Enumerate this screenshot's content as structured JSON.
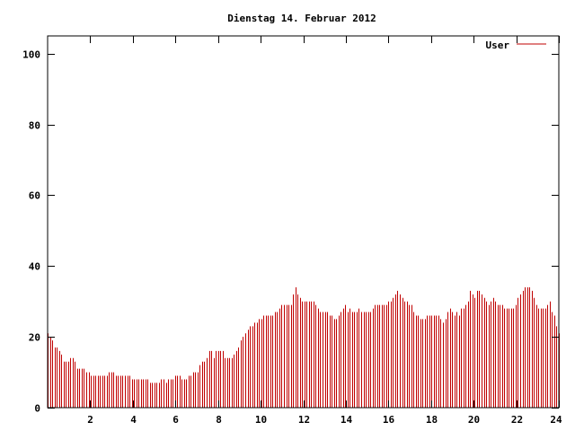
{
  "chart_data": {
    "type": "bar",
    "title": "Dienstag 14. Februar 2012",
    "xlabel": "",
    "ylabel": "",
    "xlim": [
      0,
      24
    ],
    "ylim": [
      0,
      105
    ],
    "x_ticks": [
      2,
      4,
      6,
      8,
      10,
      12,
      14,
      16,
      18,
      20,
      22,
      24
    ],
    "y_ticks": [
      0,
      20,
      40,
      60,
      80,
      100
    ],
    "grid": false,
    "legend_position": "top-right",
    "series": [
      {
        "name": "User",
        "color": "#c00000",
        "x_step_hours": 0.08333,
        "values": [
          21,
          20,
          19,
          17,
          17,
          16,
          15,
          13,
          13,
          13,
          14,
          14,
          13,
          11,
          11,
          11,
          11,
          10,
          10,
          9,
          9,
          9,
          9,
          9,
          9,
          9,
          9,
          10,
          10,
          10,
          9,
          9,
          9,
          9,
          9,
          9,
          9,
          8,
          8,
          8,
          8,
          8,
          8,
          8,
          8,
          7,
          7,
          7,
          7,
          7,
          8,
          8,
          7,
          8,
          8,
          8,
          9,
          9,
          9,
          8,
          8,
          8,
          9,
          9,
          10,
          10,
          10,
          12,
          13,
          13,
          14,
          16,
          16,
          14,
          16,
          16,
          16,
          16,
          14,
          14,
          14,
          14,
          15,
          16,
          17,
          19,
          20,
          21,
          22,
          23,
          23,
          24,
          24,
          25,
          25,
          26,
          26,
          26,
          26,
          26,
          27,
          27,
          28,
          29,
          29,
          29,
          29,
          29,
          32,
          34,
          32,
          31,
          30,
          30,
          30,
          30,
          30,
          30,
          29,
          28,
          27,
          27,
          27,
          27,
          26,
          26,
          25,
          25,
          26,
          27,
          28,
          29,
          27,
          28,
          27,
          27,
          27,
          28,
          27,
          27,
          27,
          27,
          27,
          28,
          29,
          29,
          29,
          29,
          29,
          29,
          30,
          30,
          31,
          32,
          33,
          32,
          31,
          30,
          30,
          29,
          29,
          27,
          26,
          26,
          25,
          25,
          25,
          26,
          26,
          26,
          26,
          26,
          26,
          25,
          24,
          25,
          27,
          28,
          27,
          26,
          27,
          26,
          28,
          28,
          29,
          30,
          33,
          32,
          31,
          33,
          33,
          32,
          31,
          30,
          29,
          30,
          31,
          30,
          29,
          29,
          29,
          28,
          28,
          28,
          28,
          28,
          29,
          31,
          32,
          33,
          34,
          34,
          34,
          33,
          31,
          29,
          28,
          28,
          28,
          28,
          29,
          30,
          27,
          26,
          23,
          21
        ]
      }
    ]
  }
}
